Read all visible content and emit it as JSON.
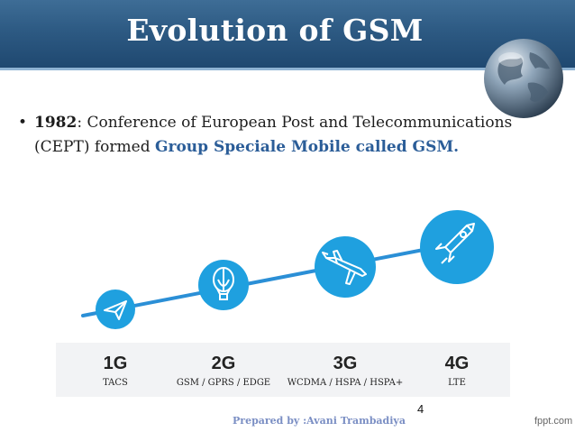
{
  "slide": {
    "title": "Evolution of GSM",
    "bullet": {
      "year": "1982",
      "text_part1": ": Conference of European Post and Telecommunications (CEPT) formed ",
      "highlight": "Group Speciale Mobile  called GSM."
    },
    "page_number": "4",
    "footer": "Prepared by :Avani Trambadiya",
    "brand": "fppt.com"
  },
  "generations": [
    {
      "label": "1G",
      "tech": "TACS",
      "icon": "paper-plane-icon"
    },
    {
      "label": "2G",
      "tech": "GSM / GPRS / EDGE",
      "icon": "hot-air-balloon-icon"
    },
    {
      "label": "3G",
      "tech": "WCDMA / HSPA / HSPA+",
      "icon": "airplane-icon"
    },
    {
      "label": "4G",
      "tech": "LTE",
      "icon": "rocket-icon"
    }
  ],
  "colors": {
    "header": "#2d5a83",
    "circle": "#1fa0df",
    "line": "#2b8fd6",
    "highlight": "#2b5d98"
  }
}
